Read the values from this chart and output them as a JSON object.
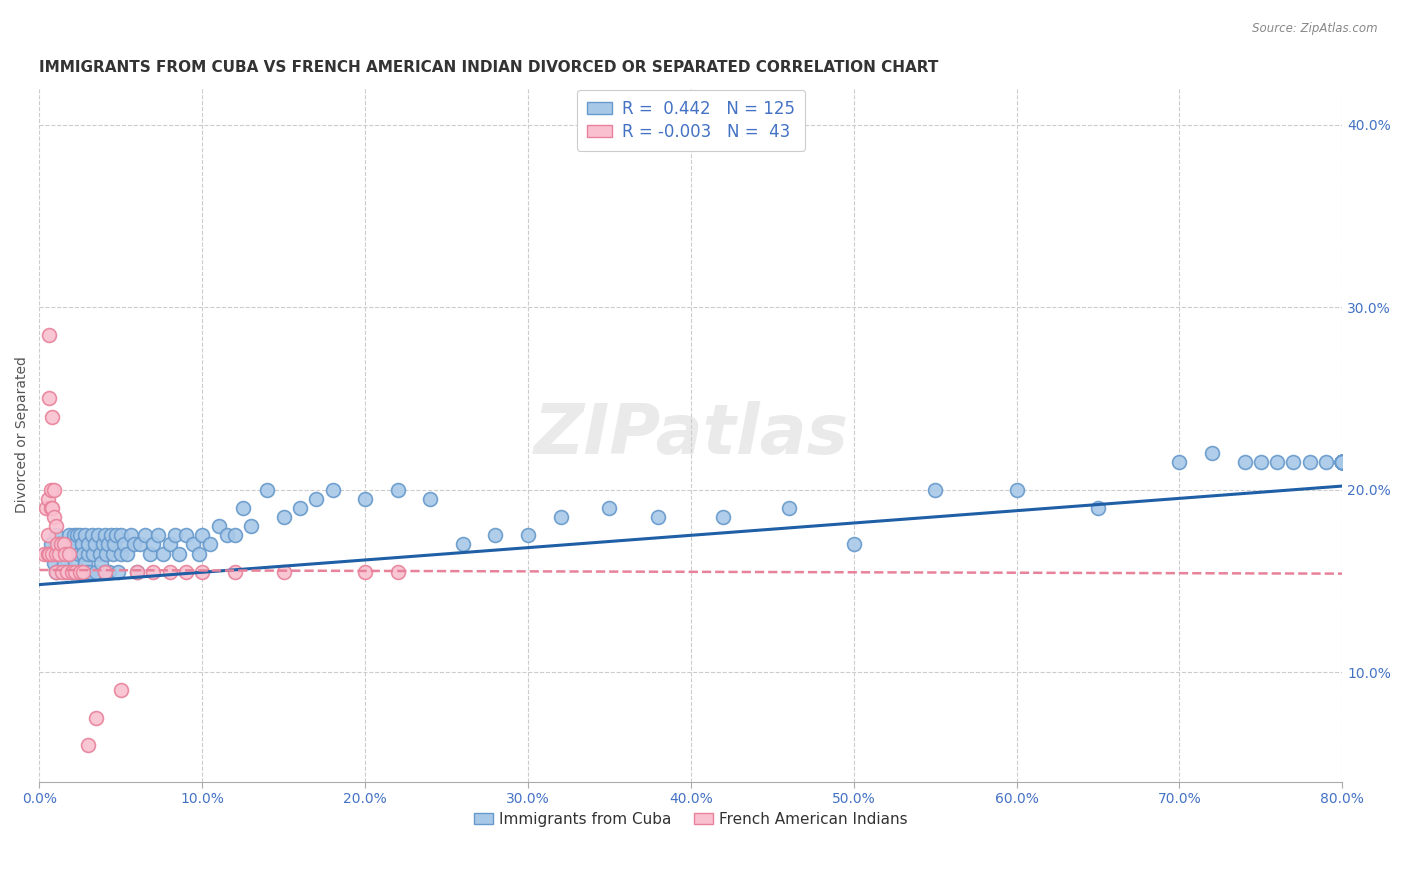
{
  "title": "IMMIGRANTS FROM CUBA VS FRENCH AMERICAN INDIAN DIVORCED OR SEPARATED CORRELATION CHART",
  "source": "Source: ZipAtlas.com",
  "ylabel": "Divorced or Separated",
  "xlim": [
    0.0,
    0.8
  ],
  "ylim": [
    0.04,
    0.42
  ],
  "watermark": "ZIPatlas",
  "legend_blue_R": "0.442",
  "legend_blue_N": "125",
  "legend_pink_R": "-0.003",
  "legend_pink_N": "43",
  "legend_blue_label": "Immigrants from Cuba",
  "legend_pink_label": "French American Indians",
  "blue_color": "#a8c8e8",
  "blue_edge_color": "#6699cc",
  "pink_color": "#f9c0d0",
  "pink_edge_color": "#e8829a",
  "blue_line_color": "#1f5fa6",
  "pink_line_color": "#e8829a",
  "blue_scatter_x": [
    0.005,
    0.007,
    0.009,
    0.01,
    0.01,
    0.012,
    0.013,
    0.015,
    0.016,
    0.017,
    0.018,
    0.019,
    0.02,
    0.02,
    0.021,
    0.022,
    0.022,
    0.023,
    0.024,
    0.025,
    0.025,
    0.026,
    0.027,
    0.028,
    0.028,
    0.029,
    0.03,
    0.03,
    0.031,
    0.032,
    0.033,
    0.034,
    0.035,
    0.036,
    0.037,
    0.038,
    0.039,
    0.04,
    0.04,
    0.041,
    0.042,
    0.043,
    0.044,
    0.045,
    0.046,
    0.047,
    0.048,
    0.05,
    0.05,
    0.052,
    0.054,
    0.056,
    0.058,
    0.06,
    0.062,
    0.065,
    0.068,
    0.07,
    0.073,
    0.076,
    0.08,
    0.083,
    0.086,
    0.09,
    0.094,
    0.098,
    0.1,
    0.105,
    0.11,
    0.115,
    0.12,
    0.125,
    0.13,
    0.14,
    0.15,
    0.16,
    0.17,
    0.18,
    0.2,
    0.22,
    0.24,
    0.26,
    0.28,
    0.3,
    0.32,
    0.35,
    0.38,
    0.42,
    0.46,
    0.5,
    0.55,
    0.6,
    0.65,
    0.7,
    0.72,
    0.74,
    0.75,
    0.76,
    0.77,
    0.78,
    0.79,
    0.8,
    0.8,
    0.8,
    0.8,
    0.8,
    0.8,
    0.8,
    0.8,
    0.8,
    0.8,
    0.8,
    0.8,
    0.8,
    0.8,
    0.8,
    0.8,
    0.8,
    0.8,
    0.8,
    0.8,
    0.8,
    0.8,
    0.8,
    0.8
  ],
  "blue_scatter_y": [
    0.165,
    0.17,
    0.16,
    0.155,
    0.175,
    0.17,
    0.165,
    0.16,
    0.155,
    0.17,
    0.175,
    0.165,
    0.155,
    0.17,
    0.175,
    0.16,
    0.17,
    0.175,
    0.165,
    0.155,
    0.175,
    0.17,
    0.165,
    0.16,
    0.175,
    0.155,
    0.165,
    0.17,
    0.155,
    0.175,
    0.165,
    0.17,
    0.155,
    0.175,
    0.165,
    0.16,
    0.17,
    0.155,
    0.175,
    0.165,
    0.17,
    0.155,
    0.175,
    0.165,
    0.17,
    0.175,
    0.155,
    0.165,
    0.175,
    0.17,
    0.165,
    0.175,
    0.17,
    0.155,
    0.17,
    0.175,
    0.165,
    0.17,
    0.175,
    0.165,
    0.17,
    0.175,
    0.165,
    0.175,
    0.17,
    0.165,
    0.175,
    0.17,
    0.18,
    0.175,
    0.175,
    0.19,
    0.18,
    0.2,
    0.185,
    0.19,
    0.195,
    0.2,
    0.195,
    0.2,
    0.195,
    0.17,
    0.175,
    0.175,
    0.185,
    0.19,
    0.185,
    0.185,
    0.19,
    0.17,
    0.2,
    0.2,
    0.19,
    0.215,
    0.22,
    0.215,
    0.215,
    0.215,
    0.215,
    0.215,
    0.215,
    0.215,
    0.215,
    0.215,
    0.215,
    0.215,
    0.215,
    0.215,
    0.215,
    0.215,
    0.215,
    0.215,
    0.215,
    0.215,
    0.215,
    0.215,
    0.215,
    0.215,
    0.215,
    0.215,
    0.215,
    0.215,
    0.215,
    0.215,
    0.215
  ],
  "pink_scatter_x": [
    0.003,
    0.004,
    0.005,
    0.005,
    0.005,
    0.006,
    0.006,
    0.006,
    0.007,
    0.007,
    0.008,
    0.008,
    0.008,
    0.009,
    0.009,
    0.01,
    0.01,
    0.01,
    0.011,
    0.012,
    0.013,
    0.014,
    0.015,
    0.016,
    0.017,
    0.018,
    0.02,
    0.022,
    0.025,
    0.027,
    0.03,
    0.035,
    0.04,
    0.05,
    0.06,
    0.07,
    0.08,
    0.09,
    0.1,
    0.12,
    0.15,
    0.2,
    0.22
  ],
  "pink_scatter_y": [
    0.165,
    0.19,
    0.175,
    0.165,
    0.195,
    0.25,
    0.285,
    0.165,
    0.19,
    0.2,
    0.165,
    0.19,
    0.24,
    0.185,
    0.2,
    0.165,
    0.18,
    0.155,
    0.17,
    0.165,
    0.17,
    0.155,
    0.17,
    0.165,
    0.155,
    0.165,
    0.155,
    0.155,
    0.155,
    0.155,
    0.06,
    0.075,
    0.155,
    0.09,
    0.155,
    0.155,
    0.155,
    0.155,
    0.155,
    0.155,
    0.155,
    0.155,
    0.155
  ],
  "blue_trend_x0": 0.0,
  "blue_trend_y0": 0.148,
  "blue_trend_x1": 0.8,
  "blue_trend_y1": 0.202,
  "pink_trend_x0": 0.0,
  "pink_trend_y0": 0.156,
  "pink_trend_x1": 0.8,
  "pink_trend_y1": 0.154,
  "grid_color": "#cccccc",
  "background_color": "#ffffff",
  "title_fontsize": 11,
  "axis_label_fontsize": 10,
  "tick_fontsize": 10,
  "legend_fontsize": 12
}
